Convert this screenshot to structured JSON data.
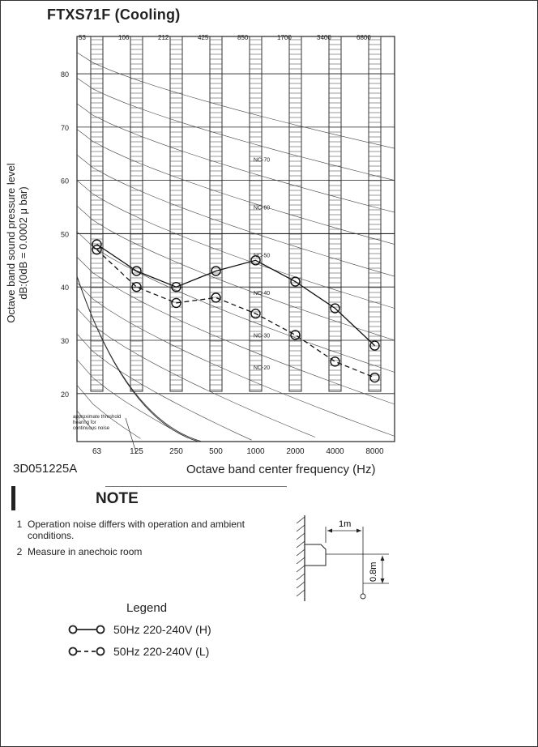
{
  "title": "FTXS71F  (Cooling)",
  "ylabel_line1": "Octave band sound pressure level",
  "ylabel_line2": "dB:(0dB = 0.0002 μ bar)",
  "drawing_code": "3D051225A",
  "xlabel": "Octave band center frequency (Hz)",
  "note_title": "NOTE",
  "notes": [
    {
      "num": "1",
      "text": "Operation noise differs with operation and ambient conditions."
    },
    {
      "num": "2",
      "text": "Measure in anechoic room"
    }
  ],
  "diagram": {
    "distance_label": "1m",
    "height_label": "0.8m"
  },
  "legend_title": "Legend",
  "legend": [
    {
      "label": "50Hz 220-240V (H)",
      "style": "solid"
    },
    {
      "label": "50Hz 220-240V (L)",
      "style": "dashed"
    }
  ],
  "chart_data": {
    "type": "line",
    "x": [
      "63",
      "125",
      "250",
      "500",
      "1000",
      "2000",
      "4000",
      "8000"
    ],
    "top_ticks": [
      "53",
      "106",
      "212",
      "425",
      "850",
      "1700",
      "3400",
      "6800"
    ],
    "y_ticks": [
      20,
      30,
      40,
      50,
      60,
      70,
      80
    ],
    "ylim": [
      11,
      87
    ],
    "series": [
      {
        "name": "50Hz 220-240V (H)",
        "values": [
          48,
          43,
          40,
          43,
          45,
          41,
          36,
          29
        ]
      },
      {
        "name": "50Hz 220-240V (L)",
        "values": [
          47,
          40,
          37,
          38,
          35,
          31,
          26,
          23
        ]
      }
    ],
    "nc_labels": [
      "NC-70",
      "NC-60",
      "NC-50",
      "NC-40",
      "NC-30",
      "NC-20"
    ],
    "threshold_annotation": "approximate threshold hearing for continuous noise"
  }
}
